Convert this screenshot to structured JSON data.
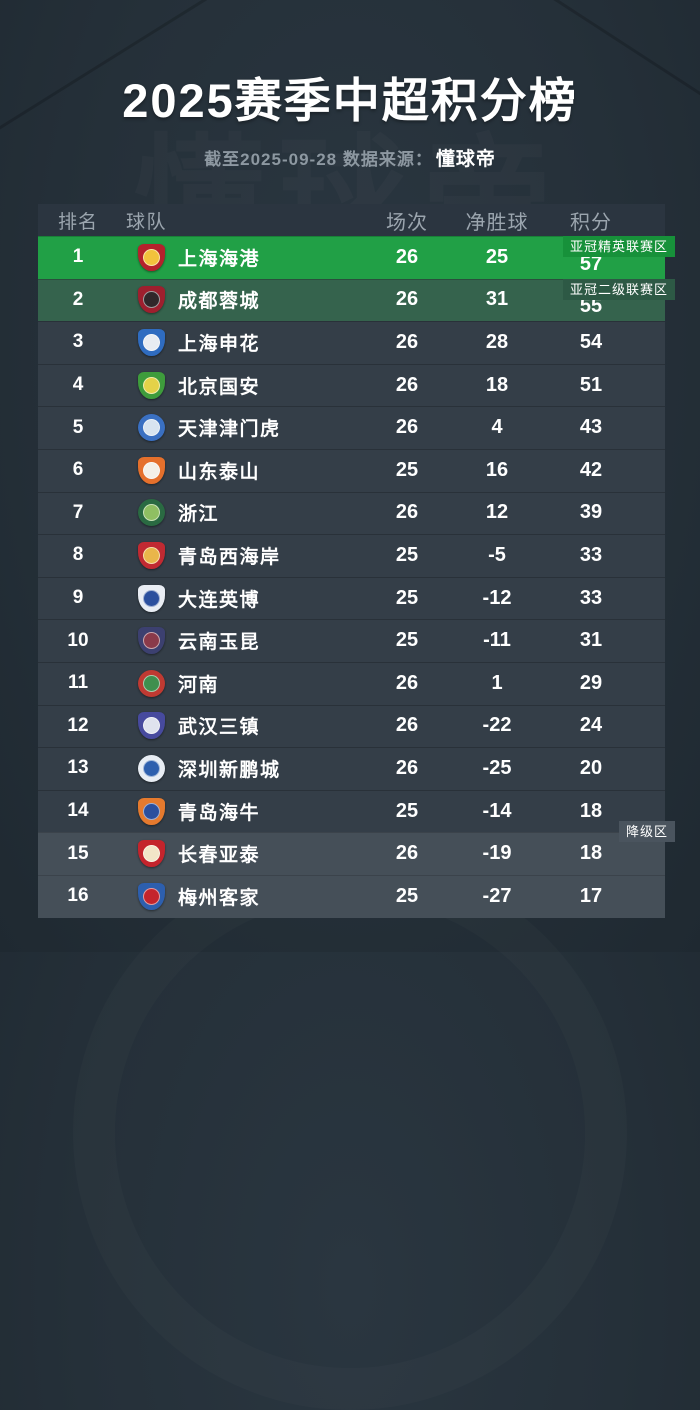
{
  "page": {
    "colors": {
      "background": "#253039",
      "header_row": "#2b3540",
      "row_default": "#343e48",
      "row_acl_elite": "#21a046",
      "row_acl_two": "#35634d",
      "row_relegation": "#454f58",
      "text_primary": "#ffffff",
      "text_muted": "#8d98a1"
    }
  },
  "header": {
    "title": "2025赛季中超积分榜",
    "subtitle_prefix": "截至2025-09-28 数据来源：",
    "source": "懂球帝",
    "watermark_text": "懂球帝"
  },
  "table": {
    "columns": {
      "rank": "排名",
      "team": "球队",
      "matches": "场次",
      "goal_diff": "净胜球",
      "points": "积分"
    },
    "zones": {
      "acl-elite": {
        "label": "亚冠精英联赛区",
        "bg": "#17913a"
      },
      "acl-two": {
        "label": "亚冠二级联赛区",
        "bg": "#2d5945"
      },
      "relegation": {
        "label": "降级区",
        "bg": "#4a545e"
      }
    },
    "rows": [
      {
        "rank": "1",
        "team": "上海海港",
        "matches": "26",
        "goal_diff": "25",
        "points": "57",
        "zone": "acl-elite",
        "badge": "acl-elite",
        "logo": {
          "shape": "shield",
          "colors": [
            "#b5212c",
            "#f2c23c"
          ]
        }
      },
      {
        "rank": "2",
        "team": "成都蓉城",
        "matches": "26",
        "goal_diff": "31",
        "points": "55",
        "zone": "acl-two",
        "badge": "acl-two",
        "logo": {
          "shape": "shield",
          "colors": [
            "#9e1f2e",
            "#30272a"
          ]
        }
      },
      {
        "rank": "3",
        "team": "上海申花",
        "matches": "26",
        "goal_diff": "28",
        "points": "54",
        "zone": "",
        "badge": "",
        "logo": {
          "shape": "shield",
          "colors": [
            "#2f6cc0",
            "#e8ecf2"
          ]
        }
      },
      {
        "rank": "4",
        "team": "北京国安",
        "matches": "26",
        "goal_diff": "18",
        "points": "51",
        "zone": "",
        "badge": "",
        "logo": {
          "shape": "shield",
          "colors": [
            "#3e9c3c",
            "#e4d248"
          ]
        }
      },
      {
        "rank": "5",
        "team": "天津津门虎",
        "matches": "26",
        "goal_diff": "4",
        "points": "43",
        "zone": "",
        "badge": "",
        "logo": {
          "shape": "circle",
          "colors": [
            "#3a70c2",
            "#d8e4f0"
          ]
        }
      },
      {
        "rank": "6",
        "team": "山东泰山",
        "matches": "25",
        "goal_diff": "16",
        "points": "42",
        "zone": "",
        "badge": "",
        "logo": {
          "shape": "shield",
          "colors": [
            "#e5702c",
            "#f4f0e8"
          ]
        }
      },
      {
        "rank": "7",
        "team": "浙江",
        "matches": "26",
        "goal_diff": "12",
        "points": "39",
        "zone": "",
        "badge": "",
        "logo": {
          "shape": "circle",
          "colors": [
            "#2a6a42",
            "#8fbf62"
          ]
        }
      },
      {
        "rank": "8",
        "team": "青岛西海岸",
        "matches": "25",
        "goal_diff": "-5",
        "points": "33",
        "zone": "",
        "badge": "",
        "logo": {
          "shape": "shield",
          "colors": [
            "#c12a32",
            "#e9b64a"
          ]
        }
      },
      {
        "rank": "9",
        "team": "大连英博",
        "matches": "25",
        "goal_diff": "-12",
        "points": "33",
        "zone": "",
        "badge": "",
        "logo": {
          "shape": "shield",
          "colors": [
            "#e9edf4",
            "#2b4f9e"
          ]
        }
      },
      {
        "rank": "10",
        "team": "云南玉昆",
        "matches": "25",
        "goal_diff": "-11",
        "points": "31",
        "zone": "",
        "badge": "",
        "logo": {
          "shape": "shield",
          "colors": [
            "#3c4070",
            "#8a3a4a"
          ]
        }
      },
      {
        "rank": "11",
        "team": "河南",
        "matches": "26",
        "goal_diff": "1",
        "points": "29",
        "zone": "",
        "badge": "",
        "logo": {
          "shape": "circle",
          "colors": [
            "#bf3a32",
            "#3f8f4e"
          ]
        }
      },
      {
        "rank": "12",
        "team": "武汉三镇",
        "matches": "26",
        "goal_diff": "-22",
        "points": "24",
        "zone": "",
        "badge": "",
        "logo": {
          "shape": "shield",
          "colors": [
            "#474a9e",
            "#dfe3ee"
          ]
        }
      },
      {
        "rank": "13",
        "team": "深圳新鹏城",
        "matches": "26",
        "goal_diff": "-25",
        "points": "20",
        "zone": "",
        "badge": "",
        "logo": {
          "shape": "circle",
          "colors": [
            "#e8edf4",
            "#2d5fae"
          ]
        }
      },
      {
        "rank": "14",
        "team": "青岛海牛",
        "matches": "25",
        "goal_diff": "-14",
        "points": "18",
        "zone": "",
        "badge": "",
        "logo": {
          "shape": "shield",
          "colors": [
            "#e57a2e",
            "#2b4f9e"
          ]
        }
      },
      {
        "rank": "15",
        "team": "长春亚泰",
        "matches": "26",
        "goal_diff": "-19",
        "points": "18",
        "zone": "relegation",
        "badge": "relegation",
        "logo": {
          "shape": "shield",
          "colors": [
            "#c4242c",
            "#f2e6c8"
          ]
        }
      },
      {
        "rank": "16",
        "team": "梅州客家",
        "matches": "25",
        "goal_diff": "-27",
        "points": "17",
        "zone": "relegation",
        "badge": "",
        "logo": {
          "shape": "shield",
          "colors": [
            "#2d5fae",
            "#c4242c"
          ]
        }
      }
    ]
  },
  "chart_data": {
    "type": "table",
    "title": "2025赛季中超积分榜",
    "as_of": "截至2025-09-28",
    "source": "懂球帝",
    "columns": [
      "排名",
      "球队",
      "场次",
      "净胜球",
      "积分"
    ],
    "rows": [
      [
        1,
        "上海海港",
        26,
        25,
        57
      ],
      [
        2,
        "成都蓉城",
        26,
        31,
        55
      ],
      [
        3,
        "上海申花",
        26,
        28,
        54
      ],
      [
        4,
        "北京国安",
        26,
        18,
        51
      ],
      [
        5,
        "天津津门虎",
        26,
        4,
        43
      ],
      [
        6,
        "山东泰山",
        25,
        16,
        42
      ],
      [
        7,
        "浙江",
        26,
        12,
        39
      ],
      [
        8,
        "青岛西海岸",
        25,
        -5,
        33
      ],
      [
        9,
        "大连英博",
        25,
        -12,
        33
      ],
      [
        10,
        "云南玉昆",
        25,
        -11,
        31
      ],
      [
        11,
        "河南",
        26,
        1,
        29
      ],
      [
        12,
        "武汉三镇",
        26,
        -22,
        24
      ],
      [
        13,
        "深圳新鹏城",
        26,
        -25,
        20
      ],
      [
        14,
        "青岛海牛",
        25,
        -14,
        18
      ],
      [
        15,
        "长春亚泰",
        26,
        -19,
        18
      ],
      [
        16,
        "梅州客家",
        25,
        -27,
        17
      ]
    ],
    "annotations": [
      {
        "row": 1,
        "label": "亚冠精英联赛区"
      },
      {
        "row": 2,
        "label": "亚冠二级联赛区"
      },
      {
        "row": 15,
        "label": "降级区"
      }
    ]
  }
}
